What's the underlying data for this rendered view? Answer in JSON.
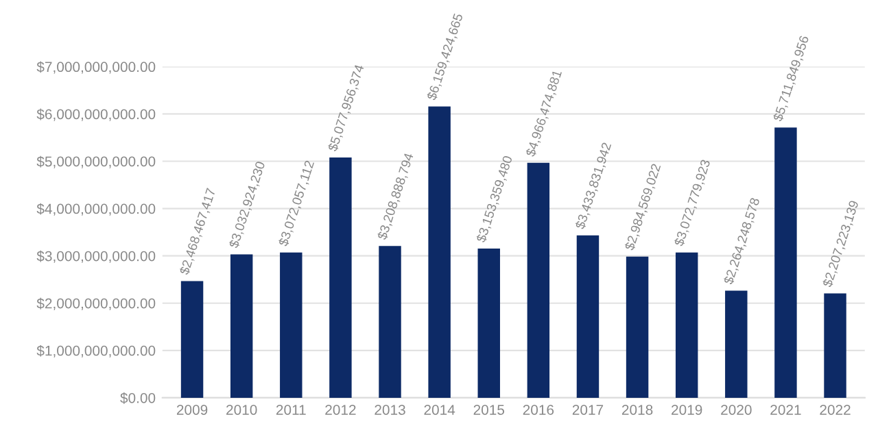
{
  "chart_data": {
    "type": "bar",
    "categories": [
      "2009",
      "2010",
      "2011",
      "2012",
      "2013",
      "2014",
      "2015",
      "2016",
      "2017",
      "2018",
      "2019",
      "2020",
      "2021",
      "2022"
    ],
    "values": [
      2468467417,
      3032924230,
      3072057112,
      5077956374,
      3208888794,
      6159424665,
      3153359480,
      4966474881,
      3433831942,
      2984569022,
      3072779923,
      2264248578,
      5711849956,
      2207223139
    ],
    "value_labels": [
      "$2,468,467,417",
      "$3,032,924,230",
      "$3,072,057,112",
      "$5,077,956,374",
      "$3,208,888,794",
      "$6,159,424,665",
      "$3,153,359,480",
      "$4,966,474,881",
      "$3,433,831,942",
      "$2,984,569,022",
      "$3,072,779,923",
      "$2,264,248,578",
      "$5,711,849,956",
      "$2,207,223,139"
    ],
    "color": "#0d2a66",
    "ylim": [
      0,
      7000000000
    ],
    "yticks": [
      {
        "value": 0,
        "label": "$0.00"
      },
      {
        "value": 1000000000,
        "label": "$1,000,000,000.00"
      },
      {
        "value": 2000000000,
        "label": "$2,000,000,000.00"
      },
      {
        "value": 3000000000,
        "label": "$3,000,000,000.00"
      },
      {
        "value": 4000000000,
        "label": "$4,000,000,000.00"
      },
      {
        "value": 5000000000,
        "label": "$5,000,000,000.00"
      },
      {
        "value": 6000000000,
        "label": "$6,000,000,000.00"
      },
      {
        "value": 7000000000,
        "label": "$7,000,000,000.00"
      }
    ],
    "grid": "y",
    "legend": false
  }
}
